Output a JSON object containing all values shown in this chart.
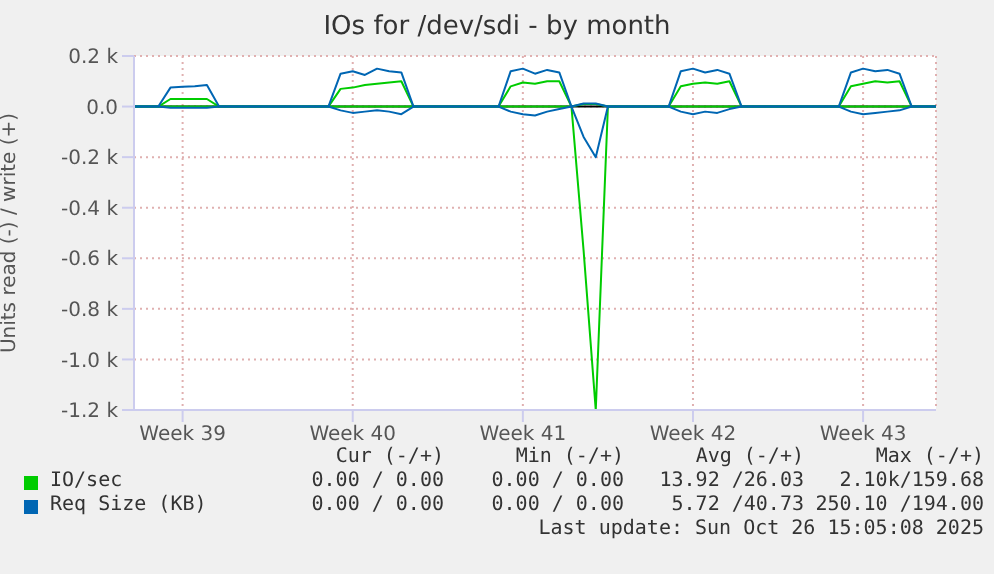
{
  "chart_data": {
    "type": "line",
    "title": "IOs for /dev/sdi - by month",
    "ylabel": "Units read (-) / write (+)",
    "categories": [
      null,
      null,
      null,
      null,
      "Week 39",
      null,
      null,
      null,
      null,
      null,
      null,
      null,
      null,
      null,
      null,
      null,
      null,
      null,
      "Week 40",
      null,
      null,
      null,
      null,
      null,
      null,
      null,
      null,
      null,
      null,
      null,
      null,
      null,
      "Week 41",
      null,
      null,
      null,
      null,
      null,
      null,
      null,
      null,
      null,
      null,
      null,
      null,
      null,
      "Week 42",
      null,
      null,
      null,
      null,
      null,
      null,
      null,
      null,
      null,
      null,
      null,
      null,
      null,
      "Week 43",
      null,
      null,
      null,
      null,
      null,
      null
    ],
    "series": [
      {
        "name": "IO/sec",
        "color": "#00cc00",
        "values": [
          0,
          0,
          0,
          30,
          30,
          30,
          30,
          0,
          0,
          0,
          0,
          0,
          0,
          0,
          0,
          0,
          0,
          70,
          75,
          85,
          90,
          95,
          100,
          0,
          0,
          0,
          0,
          0,
          0,
          0,
          0,
          80,
          95,
          90,
          100,
          100,
          0,
          10,
          10,
          0,
          0,
          0,
          0,
          0,
          0,
          80,
          90,
          95,
          90,
          100,
          0,
          0,
          0,
          0,
          0,
          0,
          0,
          0,
          0,
          80,
          90,
          100,
          95,
          100,
          0,
          0,
          0
        ]
      },
      {
        "color": "#00cc00",
        "values": [
          0,
          0,
          0,
          0,
          0,
          0,
          0,
          0,
          0,
          0,
          0,
          0,
          0,
          0,
          0,
          0,
          0,
          0,
          0,
          0,
          0,
          0,
          0,
          0,
          0,
          0,
          0,
          0,
          0,
          0,
          0,
          0,
          0,
          0,
          0,
          0,
          0,
          -570,
          -1200,
          0,
          0,
          0,
          0,
          0,
          0,
          0,
          0,
          0,
          0,
          0,
          0,
          0,
          0,
          0,
          0,
          0,
          0,
          0,
          0,
          0,
          0,
          0,
          0,
          0,
          0,
          0,
          0
        ]
      },
      {
        "name": "Req Size (KB)",
        "color": "#0066b3",
        "values": [
          0,
          0,
          0,
          75,
          78,
          80,
          85,
          0,
          0,
          0,
          0,
          0,
          0,
          0,
          0,
          0,
          0,
          130,
          140,
          125,
          150,
          140,
          135,
          0,
          0,
          0,
          0,
          0,
          0,
          0,
          0,
          140,
          150,
          130,
          145,
          135,
          0,
          12,
          12,
          0,
          0,
          0,
          0,
          0,
          0,
          140,
          150,
          135,
          145,
          130,
          0,
          0,
          0,
          0,
          0,
          0,
          0,
          0,
          0,
          135,
          150,
          140,
          145,
          130,
          0,
          0,
          0
        ]
      },
      {
        "color": "#0066b3",
        "values": [
          0,
          0,
          0,
          -5,
          -5,
          -5,
          -5,
          0,
          0,
          0,
          0,
          0,
          0,
          0,
          0,
          0,
          0,
          -15,
          -25,
          -20,
          -15,
          -20,
          -30,
          0,
          0,
          0,
          0,
          0,
          0,
          0,
          0,
          -20,
          -30,
          -35,
          -20,
          -10,
          0,
          -120,
          -200,
          0,
          0,
          0,
          0,
          0,
          0,
          -20,
          -30,
          -20,
          -25,
          -10,
          0,
          0,
          0,
          0,
          0,
          0,
          0,
          0,
          0,
          -20,
          -30,
          -25,
          -20,
          -15,
          0,
          0,
          0
        ]
      }
    ],
    "ylim": [
      -1200,
      200
    ],
    "yticks": [
      {
        "value": -1200,
        "label": "-1.2 k"
      },
      {
        "value": -1000,
        "label": "-1.0 k"
      },
      {
        "value": -800,
        "label": "-0.8 k"
      },
      {
        "value": -600,
        "label": "-0.6 k"
      },
      {
        "value": -400,
        "label": "-0.4 k"
      },
      {
        "value": -200,
        "label": "-0.2 k"
      },
      {
        "value": 0,
        "label": "0.0"
      },
      {
        "value": 200,
        "label": "0.2 k"
      }
    ],
    "ref_lines": [
      {
        "axis": "y",
        "value": 0,
        "color": "#000000"
      }
    ],
    "grid": true,
    "legend": "bottom",
    "marker": "none",
    "line_style": "solid",
    "annotations": [
      "Cur (-/+)",
      "Min (-/+)",
      "Avg (-/+)",
      "Max (-/+)",
      "0.00 / 0.00",
      "0.00 / 0.00",
      "13.92 /26.03",
      "2.10k/159.68",
      "0.00 / 0.00",
      "0.00 / 0.00",
      "5.72 /40.73",
      "250.10 /194.00",
      "Last update: Sun Oct 26 15:05:08 2025"
    ]
  }
}
